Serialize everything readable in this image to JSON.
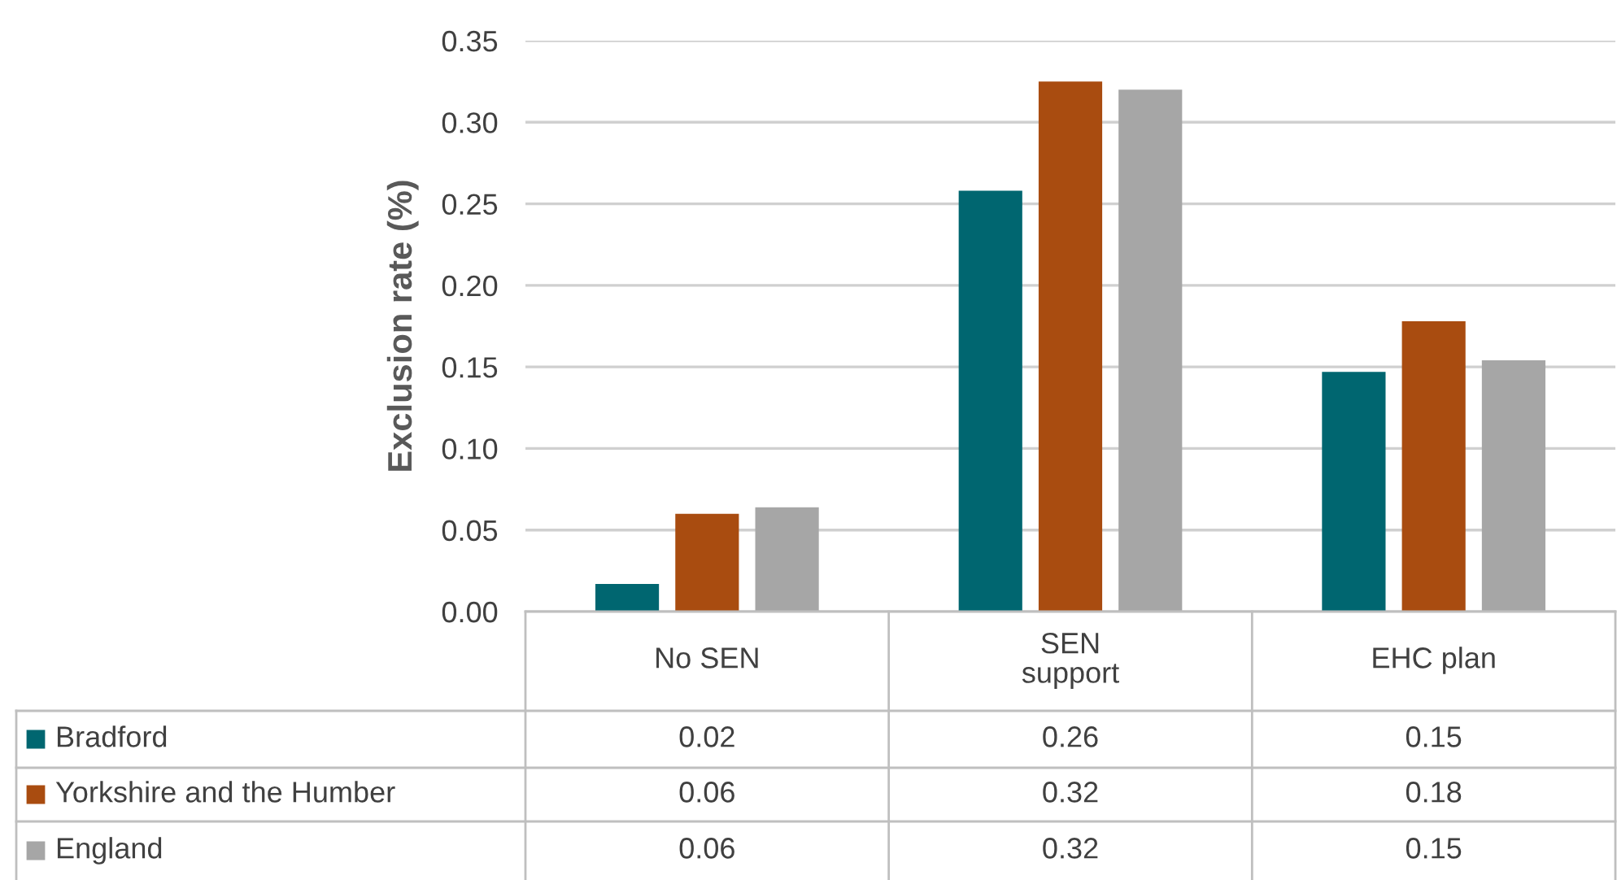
{
  "chart_data": {
    "type": "bar",
    "ylabel": "Exclusion rate (%)",
    "categories": [
      "No SEN",
      "SEN\nsupport",
      "EHC plan"
    ],
    "series": [
      {
        "name": "Bradford",
        "color": "#006670",
        "values": [
          0.017,
          0.258,
          0.147
        ],
        "value_labels": [
          "0.02",
          "0.26",
          "0.15"
        ]
      },
      {
        "name": "Yorkshire and the Humber",
        "color": "#a94c10",
        "values": [
          0.06,
          0.325,
          0.178
        ],
        "value_labels": [
          "0.06",
          "0.32",
          "0.18"
        ]
      },
      {
        "name": "England",
        "color": "#a6a6a6",
        "values": [
          0.064,
          0.32,
          0.154
        ],
        "value_labels": [
          "0.06",
          "0.32",
          "0.15"
        ]
      }
    ],
    "ylim": [
      0,
      0.35
    ],
    "yticks": [
      {
        "value": 0,
        "label": "0.00"
      },
      {
        "value": 0.05,
        "label": "0.05"
      },
      {
        "value": 0.1,
        "label": "0.10"
      },
      {
        "value": 0.15,
        "label": "0.15"
      },
      {
        "value": 0.2,
        "label": "0.20"
      },
      {
        "value": 0.25,
        "label": "0.25"
      },
      {
        "value": 0.3,
        "label": "0.30"
      },
      {
        "value": 0.35,
        "label": "0.35"
      }
    ],
    "grid": "y",
    "legend": "bottom"
  }
}
